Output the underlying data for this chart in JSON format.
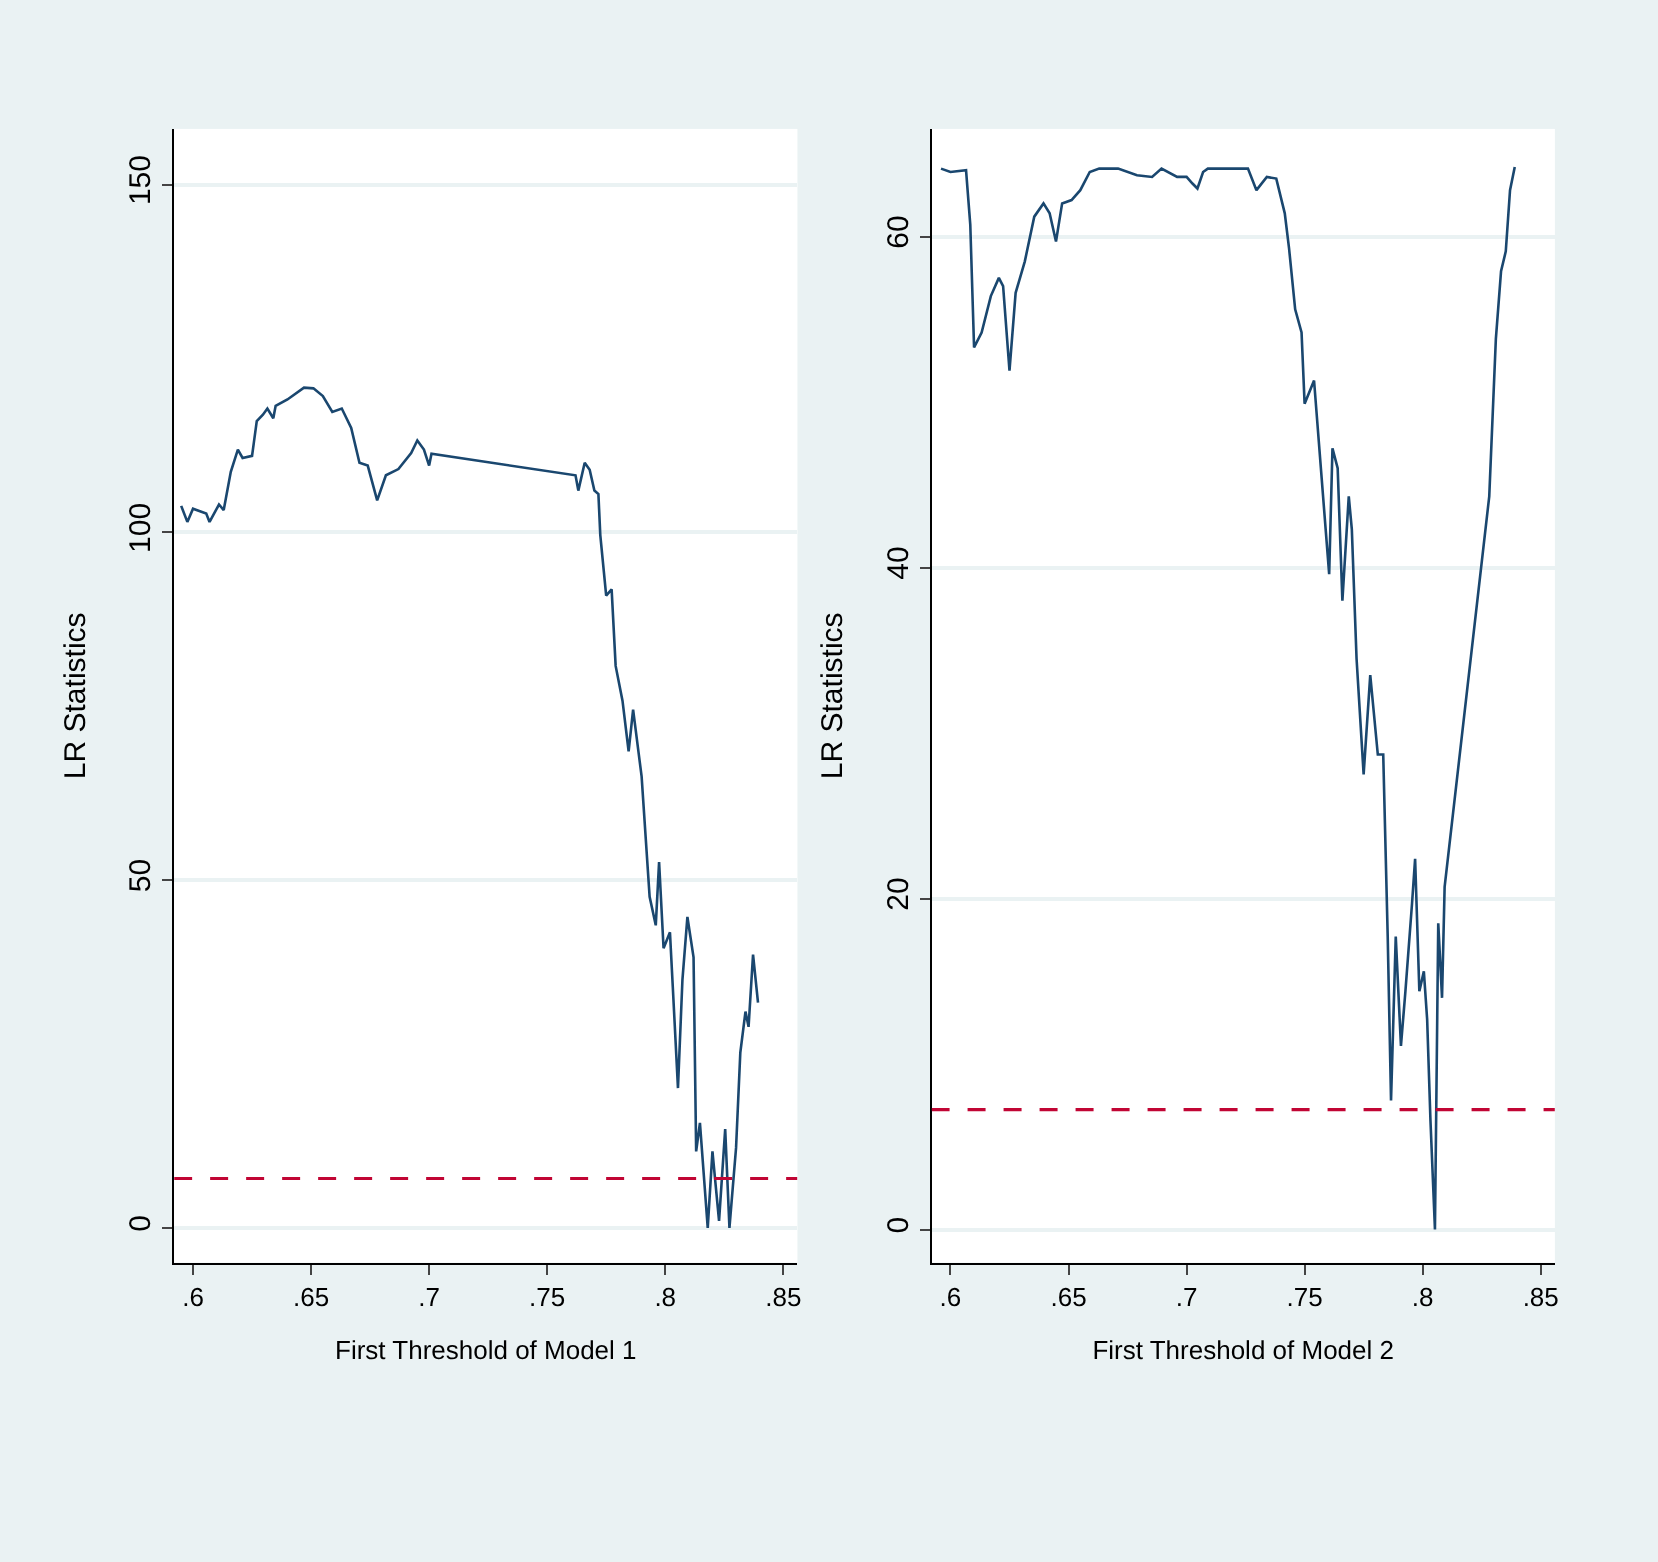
{
  "chart_data": [
    {
      "type": "line",
      "xlabel": "First Threshold of Model 1",
      "ylabel": "LR Statistics",
      "x": [
        0.595,
        0.5976,
        0.6,
        0.6056,
        0.607,
        0.611,
        0.613,
        0.616,
        0.619,
        0.621,
        0.625,
        0.627,
        0.6296,
        0.6315,
        0.634,
        0.635,
        0.64,
        0.647,
        0.651,
        0.655,
        0.659,
        0.663,
        0.667,
        0.6705,
        0.674,
        0.678,
        0.6817,
        0.687,
        0.6924,
        0.695,
        0.6978,
        0.7,
        0.701,
        0.762,
        0.7632,
        0.7659,
        0.768,
        0.77,
        0.7717,
        0.7725,
        0.775,
        0.7773,
        0.779,
        0.7819,
        0.7845,
        0.7864,
        0.79,
        0.7934,
        0.796,
        0.7974,
        0.7993,
        0.802,
        0.8032,
        0.8054,
        0.8073,
        0.8094,
        0.812,
        0.8131,
        0.8147,
        0.818,
        0.82,
        0.8228,
        0.8254,
        0.8272,
        0.83,
        0.8318,
        0.834,
        0.8353,
        0.8372,
        0.8393
      ],
      "series": [
        {
          "color": "#1a476f",
          "values": [
            103.8,
            101.5,
            103.4,
            102.7,
            101.5,
            104,
            103.2,
            108.7,
            111.9,
            110.7,
            111,
            116,
            116.9,
            117.8,
            116.4,
            118.2,
            119.1,
            120.8,
            120.7,
            119.6,
            117.3,
            117.8,
            115,
            110,
            109.6,
            104.6,
            108.2,
            109.1,
            111.4,
            113.2,
            111.9,
            109.6,
            111.3,
            108.2,
            106,
            110,
            109,
            106,
            105.5,
            99.6,
            90.9,
            91.8,
            80.8,
            75.8,
            68.5,
            74.5,
            64.9,
            47.6,
            43.5,
            52.6,
            40.2,
            42.5,
            34.7,
            20.1,
            35.7,
            44.7,
            38.9,
            11,
            15.1,
            0,
            11,
            1,
            14.2,
            0,
            11.5,
            25.2,
            31.1,
            28.9,
            39.3,
            32.4
          ]
        }
      ],
      "xlim": [
        0.592,
        0.856
      ],
      "xticks": [
        {
          "value": 0.6,
          "label": ".6"
        },
        {
          "value": 0.65,
          "label": ".65"
        },
        {
          "value": 0.7,
          "label": ".7"
        },
        {
          "value": 0.75,
          "label": ".75"
        },
        {
          "value": 0.8,
          "label": ".8"
        },
        {
          "value": 0.85,
          "label": ".85"
        }
      ],
      "ylim": [
        -5,
        158
      ],
      "yticks": [
        0,
        50,
        100,
        150
      ],
      "grid": "y",
      "ref_lines": [
        {
          "axis": "y",
          "value": 7.1,
          "color": "#c10534",
          "line_style": "dashed"
        }
      ]
    },
    {
      "type": "line",
      "xlabel": "First Threshold of Model 2",
      "ylabel": "LR Statistics",
      "x": [
        0.596,
        0.6,
        0.6066,
        0.6084,
        0.61,
        0.6132,
        0.6171,
        0.6205,
        0.6223,
        0.625,
        0.6276,
        0.6315,
        0.6355,
        0.6394,
        0.642,
        0.6447,
        0.6473,
        0.6513,
        0.655,
        0.659,
        0.663,
        0.671,
        0.679,
        0.6854,
        0.6894,
        0.696,
        0.7,
        0.7025,
        0.7046,
        0.707,
        0.709,
        0.726,
        0.7296,
        0.734,
        0.738,
        0.7416,
        0.7434,
        0.746,
        0.7487,
        0.75,
        0.754,
        0.7576,
        0.7604,
        0.7618,
        0.764,
        0.766,
        0.7687,
        0.77,
        0.772,
        0.775,
        0.7778,
        0.781,
        0.7833,
        0.7852,
        0.7866,
        0.7886,
        0.7908,
        0.7927,
        0.7955,
        0.7968,
        0.7986,
        0.8005,
        0.8019,
        0.8033,
        0.8052,
        0.8066,
        0.8082,
        0.8093,
        0.8282,
        0.831,
        0.8332,
        0.8352,
        0.837,
        0.839
      ],
      "series": [
        {
          "color": "#1a476f",
          "values": [
            64.1,
            63.9,
            64,
            60.7,
            53.3,
            54.2,
            56.4,
            57.5,
            57,
            51.9,
            56.6,
            58.5,
            61.2,
            62,
            61.4,
            59.7,
            62,
            62.2,
            62.8,
            63.9,
            64.1,
            64.1,
            63.7,
            63.6,
            64.1,
            63.6,
            63.6,
            63.2,
            62.9,
            63.9,
            64.1,
            64.1,
            62.8,
            63.6,
            63.5,
            61.4,
            59.3,
            55.6,
            54.2,
            49.9,
            51.3,
            44.7,
            39.6,
            47.2,
            46,
            38,
            44.3,
            42.3,
            34.5,
            27.5,
            33.5,
            28.7,
            28.7,
            17.7,
            7.8,
            17.7,
            11.1,
            14.4,
            19.7,
            22.4,
            14.4,
            15.6,
            12.7,
            6.6,
            0,
            18.5,
            14,
            20.7,
            44.3,
            53.8,
            57.9,
            59.1,
            62.8,
            64.2
          ]
        }
      ],
      "xlim": [
        0.592,
        0.856
      ],
      "xticks": [
        {
          "value": 0.6,
          "label": ".6"
        },
        {
          "value": 0.65,
          "label": ".65"
        },
        {
          "value": 0.7,
          "label": ".7"
        },
        {
          "value": 0.75,
          "label": ".75"
        },
        {
          "value": 0.8,
          "label": ".8"
        },
        {
          "value": 0.85,
          "label": ".85"
        }
      ],
      "ylim": [
        -2,
        66.5
      ],
      "yticks": [
        0,
        20,
        40,
        60
      ],
      "grid": "y",
      "ref_lines": [
        {
          "axis": "y",
          "value": 7.25,
          "color": "#c10534",
          "line_style": "dashed"
        }
      ]
    }
  ]
}
